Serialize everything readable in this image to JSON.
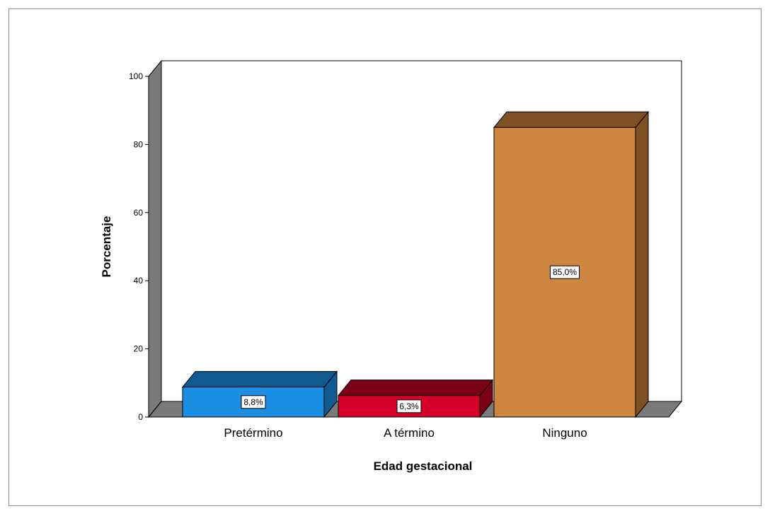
{
  "chart_data": {
    "type": "bar",
    "categories": [
      "Pretérmino",
      "A término",
      "Ninguno"
    ],
    "values": [
      8.8,
      6.3,
      85.0
    ],
    "data_labels": [
      "8,8%",
      "6,3%",
      "85,0%"
    ],
    "colors": [
      "#1a8fe3",
      "#d4002a",
      "#cd853f"
    ],
    "top_colors": [
      "#0f5a91",
      "#7d0019",
      "#7e5125"
    ],
    "ylabel": "Porcentaje",
    "xlabel": "Edad gestacional",
    "ylim": [
      0,
      100
    ],
    "yticks": [
      "0",
      "20",
      "40",
      "60",
      "80",
      "100"
    ],
    "grid": true,
    "style": "3d"
  }
}
